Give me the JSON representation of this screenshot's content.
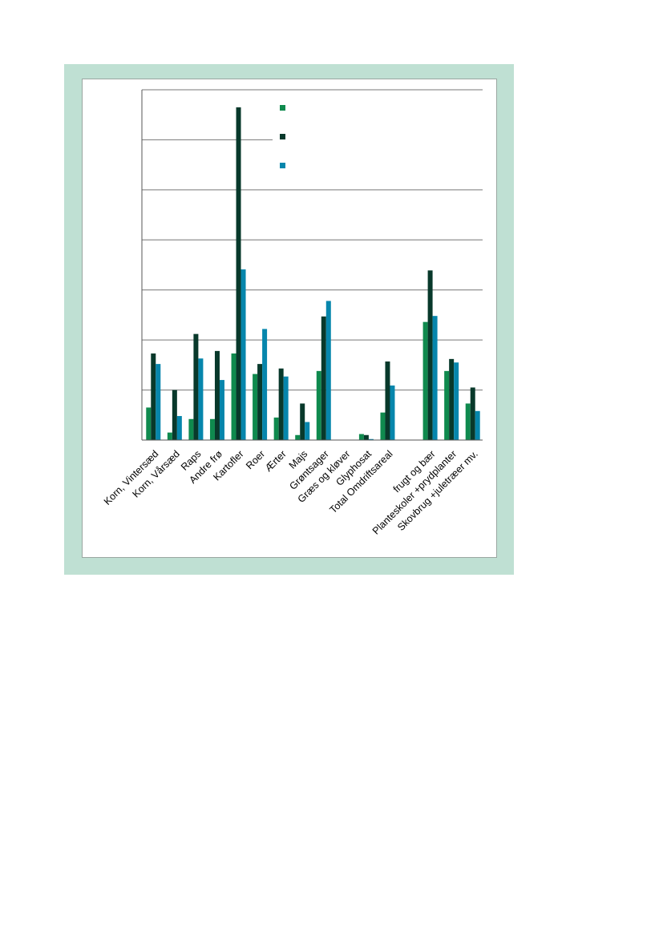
{
  "chart_data": {
    "type": "bar",
    "categories": [
      "Korn, Vintersæd",
      "Korn, Vårsæd",
      "Raps",
      "Andre frø",
      "Kartofler",
      "Roer",
      "Ærter",
      "Majs",
      "Grøntsager",
      "Græs og kløver",
      "Glyphosat",
      "Total Omdriftsareal",
      "",
      "frugt og bær",
      "Planteskoler +prydplanter",
      "Skovbrug +juletræer mv."
    ],
    "series": [
      {
        "color": "#0f8a4e",
        "values": [
          0.65,
          0.15,
          0.42,
          0.42,
          1.73,
          1.32,
          0.45,
          0.1,
          1.38,
          0,
          0.12,
          0.55,
          0,
          2.36,
          1.38,
          0.73
        ]
      },
      {
        "color": "#08392b",
        "values": [
          1.73,
          1.0,
          2.12,
          1.78,
          6.65,
          1.52,
          1.43,
          0.73,
          2.47,
          0,
          0.1,
          1.57,
          0,
          3.39,
          1.62,
          1.05
        ]
      },
      {
        "color": "#0686ac",
        "values": [
          1.52,
          0.48,
          1.63,
          1.2,
          3.41,
          2.22,
          1.27,
          0.36,
          2.78,
          0,
          0.02,
          1.09,
          0,
          2.48,
          1.55,
          0.58
        ]
      }
    ],
    "ylim": [
      0,
      7
    ],
    "grid": true,
    "legend_position": "top-right"
  }
}
